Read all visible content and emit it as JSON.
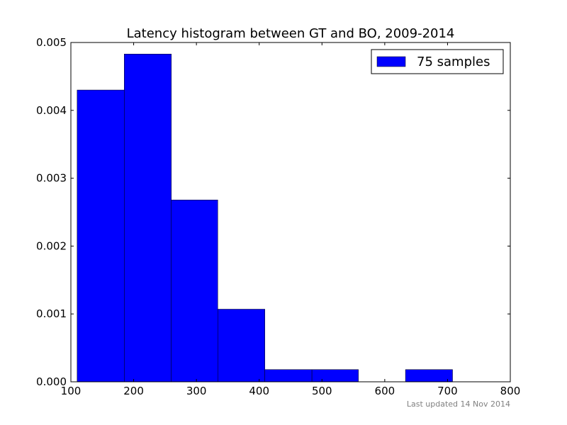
{
  "chart_data": {
    "type": "bar",
    "title": "Latency histogram between GT and BO, 2009-2014",
    "xlabel": "",
    "ylabel": "",
    "xlim": [
      100,
      800
    ],
    "ylim": [
      0,
      0.005
    ],
    "x_ticks": [
      100,
      200,
      300,
      400,
      500,
      600,
      700,
      800
    ],
    "y_ticks": [
      "0.000",
      "0.001",
      "0.002",
      "0.003",
      "0.004",
      "0.005"
    ],
    "legend_position": "top-right",
    "grid": false,
    "series": [
      {
        "name": "75 samples",
        "color": "#0000ff",
        "bins": [
          {
            "start": 110,
            "end": 185,
            "value": 0.0043
          },
          {
            "start": 185,
            "end": 260,
            "value": 0.00483
          },
          {
            "start": 260,
            "end": 334,
            "value": 0.00268
          },
          {
            "start": 334,
            "end": 409,
            "value": 0.00107
          },
          {
            "start": 409,
            "end": 484,
            "value": 0.00018
          },
          {
            "start": 484,
            "end": 558,
            "value": 0.00018
          },
          {
            "start": 558,
            "end": 633,
            "value": 0
          },
          {
            "start": 633,
            "end": 708,
            "value": 0.00018
          }
        ]
      }
    ]
  },
  "footer": {
    "updated": "Last updated 14 Nov 2014"
  }
}
